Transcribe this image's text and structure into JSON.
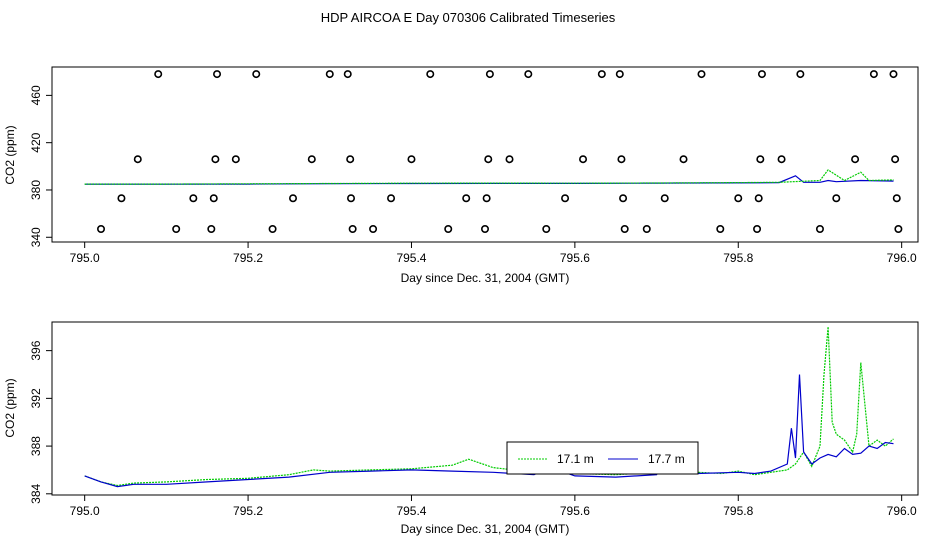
{
  "chart_data": [
    {
      "type": "line",
      "title": "HDP AIRCOA E  Day 070306  Calibrated Timeseries",
      "xlabel": "Day since Dec. 31, 2004 (GMT)",
      "ylabel": "CO2 (ppm)",
      "xlim": [
        794.96,
        796.02
      ],
      "ylim": [
        336,
        484
      ],
      "xticks": [
        "795.0",
        "795.2",
        "795.4",
        "795.6",
        "795.8",
        "796.0"
      ],
      "yticks": [
        "340",
        "380",
        "420",
        "460"
      ],
      "series": [
        {
          "name": "",
          "color": "#0000cc",
          "x": [
            795.0,
            795.1,
            795.2,
            795.3,
            795.4,
            795.5,
            795.6,
            795.7,
            795.75,
            795.8,
            795.85,
            795.87,
            795.88,
            795.9,
            795.91,
            795.92,
            795.95,
            795.99
          ],
          "values": [
            385,
            385,
            385,
            385.3,
            385.5,
            385.6,
            385.6,
            385.8,
            385.9,
            386.0,
            386.2,
            392,
            386.5,
            386.5,
            388,
            387,
            388,
            387.5
          ]
        },
        {
          "name": "",
          "color": "#00cc00",
          "x": [
            795.0,
            795.1,
            795.2,
            795.3,
            795.4,
            795.5,
            795.6,
            795.7,
            795.8,
            795.85,
            795.9,
            795.91,
            795.93,
            795.95,
            795.96,
            795.99
          ],
          "values": [
            385,
            385,
            385.2,
            385.5,
            385.7,
            385.8,
            385.7,
            385.9,
            386.2,
            386.5,
            388,
            397,
            388,
            395,
            388,
            388.5
          ]
        }
      ],
      "calibration_points": {
        "marker": "open-circle",
        "points": [
          [
            795.02,
            347
          ],
          [
            795.045,
            373
          ],
          [
            795.065,
            406
          ],
          [
            795.09,
            478
          ],
          [
            795.112,
            347
          ],
          [
            795.133,
            373
          ],
          [
            795.155,
            347
          ],
          [
            795.158,
            373
          ],
          [
            795.16,
            406
          ],
          [
            795.162,
            478
          ],
          [
            795.185,
            406
          ],
          [
            795.21,
            478
          ],
          [
            795.23,
            347
          ],
          [
            795.255,
            373
          ],
          [
            795.278,
            406
          ],
          [
            795.3,
            478
          ],
          [
            795.322,
            478
          ],
          [
            795.325,
            406
          ],
          [
            795.326,
            373
          ],
          [
            795.328,
            347
          ],
          [
            795.353,
            347
          ],
          [
            795.375,
            373
          ],
          [
            795.4,
            406
          ],
          [
            795.423,
            478
          ],
          [
            795.445,
            347
          ],
          [
            795.467,
            373
          ],
          [
            795.49,
            347
          ],
          [
            795.492,
            373
          ],
          [
            795.494,
            406
          ],
          [
            795.496,
            478
          ],
          [
            795.52,
            406
          ],
          [
            795.543,
            478
          ],
          [
            795.565,
            347
          ],
          [
            795.588,
            373
          ],
          [
            795.61,
            406
          ],
          [
            795.633,
            478
          ],
          [
            795.655,
            478
          ],
          [
            795.657,
            406
          ],
          [
            795.659,
            373
          ],
          [
            795.661,
            347
          ],
          [
            795.688,
            347
          ],
          [
            795.71,
            373
          ],
          [
            795.733,
            406
          ],
          [
            795.755,
            478
          ],
          [
            795.778,
            347
          ],
          [
            795.8,
            373
          ],
          [
            795.823,
            347
          ],
          [
            795.825,
            373
          ],
          [
            795.827,
            406
          ],
          [
            795.829,
            478
          ],
          [
            795.853,
            406
          ],
          [
            795.876,
            478
          ],
          [
            795.9,
            347
          ],
          [
            795.92,
            373
          ],
          [
            795.943,
            406
          ],
          [
            795.966,
            478
          ],
          [
            795.99,
            478
          ],
          [
            795.992,
            406
          ],
          [
            795.994,
            373
          ],
          [
            795.996,
            347
          ]
        ]
      }
    },
    {
      "type": "line",
      "title": "",
      "xlabel": "Day since Dec. 31, 2004 (GMT)",
      "ylabel": "CO2 (ppm)",
      "xlim": [
        794.96,
        796.02
      ],
      "ylim": [
        383.9,
        398.4
      ],
      "xticks": [
        "795.0",
        "795.2",
        "795.4",
        "795.6",
        "795.8",
        "796.0"
      ],
      "yticks": [
        "384",
        "388",
        "392",
        "396"
      ],
      "legend": {
        "placement": "inside-right",
        "entries": [
          "17.1 m",
          "17.7 m"
        ]
      },
      "series": [
        {
          "name": "17.1 m",
          "color": "#00cc00",
          "x": [
            795.0,
            795.02,
            795.04,
            795.06,
            795.1,
            795.15,
            795.2,
            795.25,
            795.28,
            795.3,
            795.35,
            795.4,
            795.45,
            795.47,
            795.5,
            795.55,
            795.6,
            795.65,
            795.7,
            795.72,
            795.75,
            795.78,
            795.8,
            795.82,
            795.84,
            795.86,
            795.87,
            795.88,
            795.89,
            795.9,
            795.905,
            795.91,
            795.915,
            795.92,
            795.93,
            795.935,
            795.94,
            795.945,
            795.95,
            795.96,
            795.97,
            795.98,
            795.99
          ],
          "values": [
            385.5,
            385.0,
            384.7,
            384.9,
            385.0,
            385.2,
            385.3,
            385.6,
            386.0,
            385.9,
            386.0,
            386.1,
            386.4,
            386.9,
            386.2,
            385.8,
            385.7,
            385.6,
            385.8,
            386.3,
            385.8,
            385.7,
            385.9,
            385.6,
            385.8,
            386.0,
            386.5,
            387.5,
            386.3,
            388.0,
            394.0,
            398.0,
            390.0,
            389.0,
            388.5,
            388.0,
            387.5,
            389.0,
            395.0,
            388.0,
            388.5,
            388.0,
            388.6
          ]
        },
        {
          "name": "17.7 m",
          "color": "#0000cc",
          "x": [
            795.0,
            795.02,
            795.04,
            795.06,
            795.1,
            795.15,
            795.2,
            795.25,
            795.3,
            795.35,
            795.4,
            795.45,
            795.5,
            795.55,
            795.57,
            795.6,
            795.65,
            795.7,
            795.71,
            795.72,
            795.75,
            795.8,
            795.82,
            795.84,
            795.86,
            795.865,
            795.87,
            795.875,
            795.88,
            795.89,
            795.9,
            795.91,
            795.92,
            795.93,
            795.94,
            795.95,
            795.96,
            795.97,
            795.98,
            795.99
          ],
          "values": [
            385.5,
            385.0,
            384.6,
            384.8,
            384.8,
            385.0,
            385.2,
            385.4,
            385.8,
            385.9,
            386.0,
            385.9,
            385.8,
            385.6,
            386.2,
            385.5,
            385.4,
            385.6,
            387.0,
            385.8,
            385.7,
            385.8,
            385.7,
            385.9,
            386.5,
            389.5,
            387.0,
            394.0,
            387.5,
            386.5,
            387.0,
            387.3,
            387.1,
            387.8,
            387.3,
            387.4,
            388.0,
            387.8,
            388.3,
            388.2
          ]
        }
      ]
    }
  ]
}
